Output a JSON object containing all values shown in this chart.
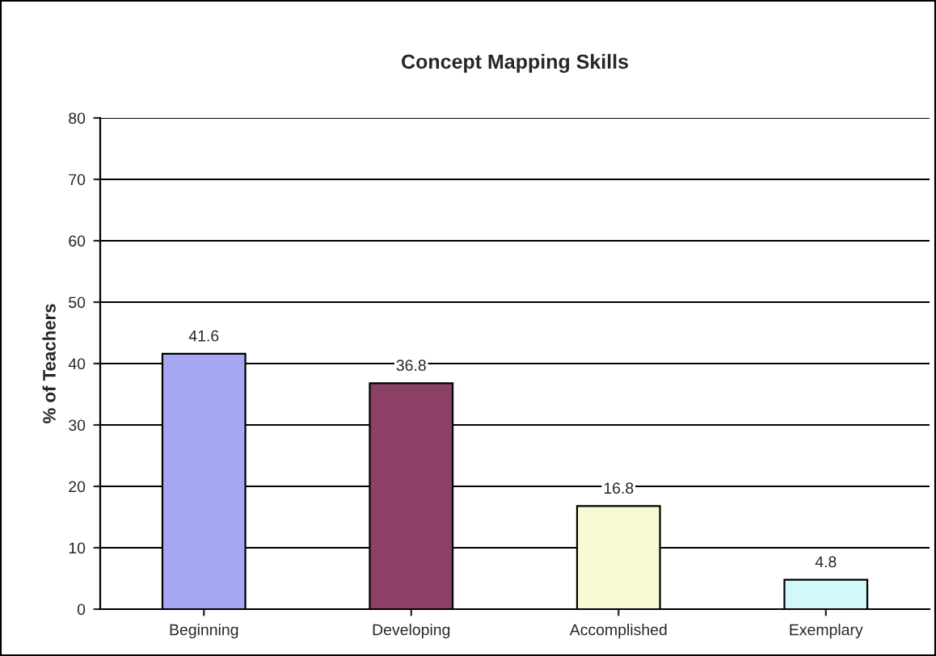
{
  "chart_data": {
    "type": "bar",
    "title": "Concept Mapping Skills",
    "ylabel": "% of Teachers",
    "categories": [
      "Beginning",
      "Developing",
      "Accomplished",
      "Exemplary"
    ],
    "values": [
      41.6,
      36.8,
      16.8,
      4.8
    ],
    "colors": [
      "#9999ff",
      "#993366",
      "#ffffcc",
      "#ccffff"
    ],
    "ylim": [
      0,
      80
    ],
    "yticks": [
      0,
      10,
      20,
      30,
      40,
      50,
      60,
      70,
      80
    ],
    "grid": "y",
    "data_labels": true
  }
}
